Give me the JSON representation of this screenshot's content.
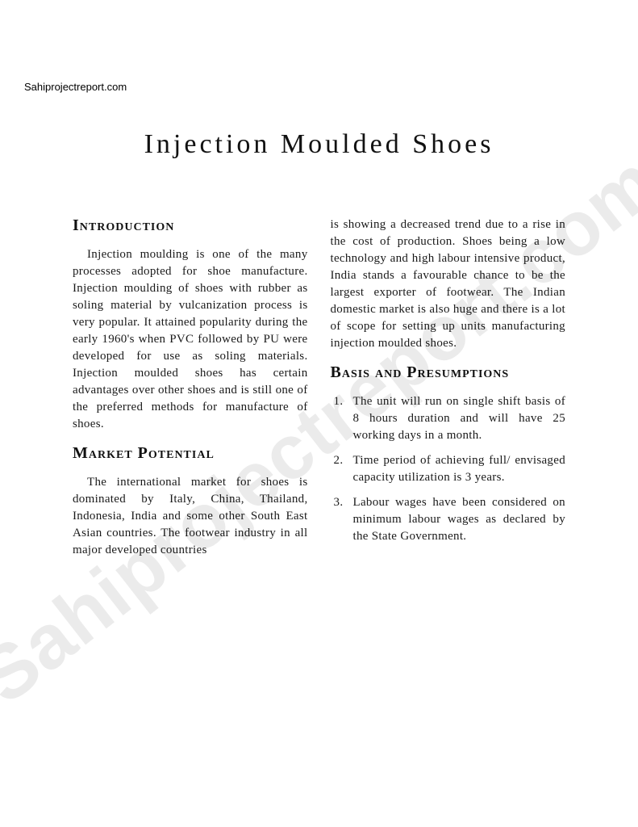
{
  "site_label": "Sahiprojectreport.com",
  "watermark_text": "Sahiprojectreport.com",
  "title": "Injection  Moulded  Shoes",
  "left": {
    "heading_intro": "Introduction",
    "para_intro": "Injection moulding is one of the many processes adopted for shoe manufacture. Injection moulding of shoes with rubber as soling material by vulcanization process is very popular. It attained popularity during the early 1960's when PVC followed by PU were developed for use as soling materials. Injection moulded shoes has certain advantages over other shoes and is still one of the preferred methods for manufacture of shoes.",
    "heading_market": "Market Potential",
    "para_market": "The international market for shoes is dominated by Italy, China, Thailand, Indonesia, India and some other South East Asian countries. The footwear industry in all major developed countries"
  },
  "right": {
    "para_cont": "is showing a decreased trend due to a rise in the cost of production. Shoes being a low technology and high labour intensive product, India stands a favourable chance to be the largest exporter of footwear. The Indian domestic market is also huge and there is a lot of scope for setting up units manufacturing injection moulded shoes.",
    "heading_basis": "Basis and Presumptions",
    "items": [
      "The unit will run on single shift basis of 8 hours duration and will have 25 working days in a month.",
      "Time period of achieving full/ envisaged capacity utilization is 3 years.",
      "Labour wages have been considered on minimum labour wages as declared by the State Government."
    ]
  },
  "colors": {
    "text": "#1a1a1a",
    "background": "#ffffff",
    "watermark": "rgba(0,0,0,0.08)"
  },
  "typography": {
    "title_fontsize": 34,
    "heading_fontsize": 20,
    "body_fontsize": 15,
    "watermark_fontsize": 95
  }
}
